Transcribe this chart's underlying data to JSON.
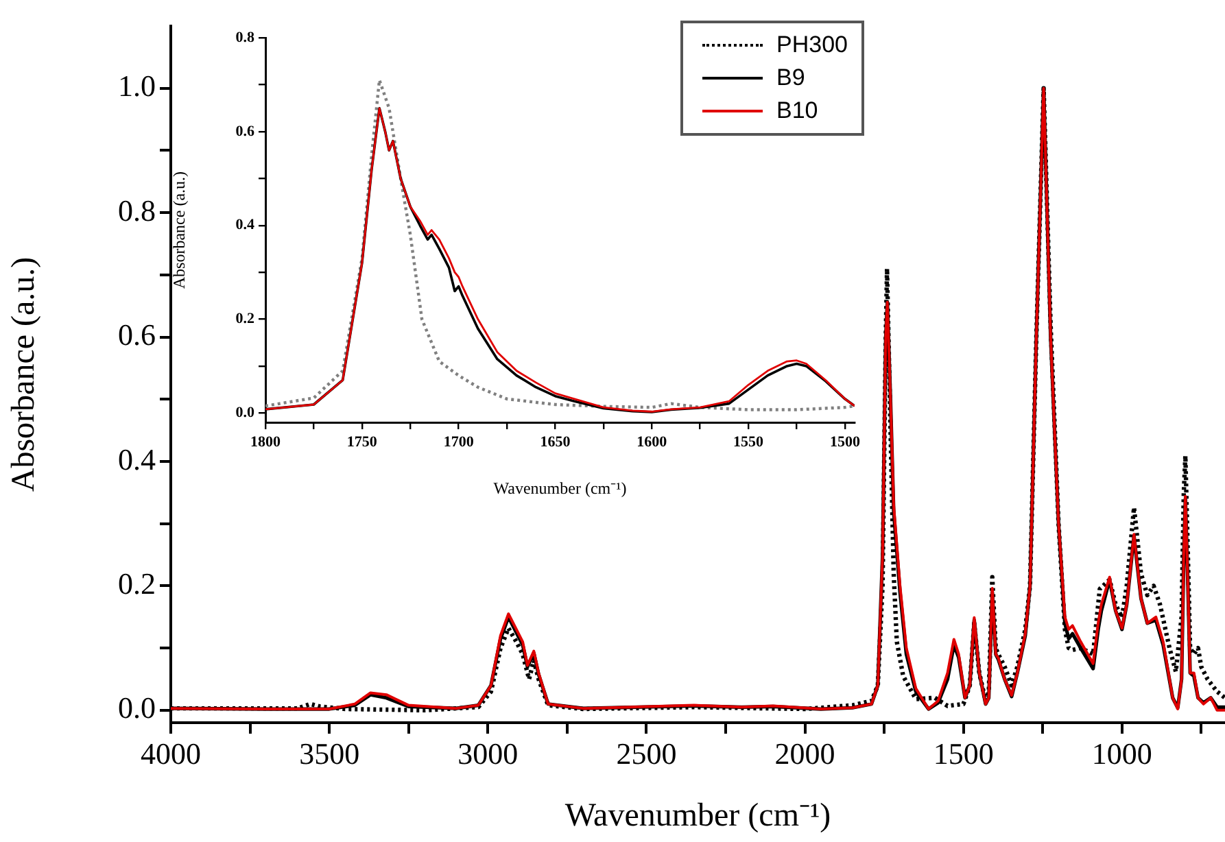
{
  "chart_data": [
    {
      "type": "line",
      "xlabel": "Wavenumber (cm⁻¹)",
      "ylabel": "Absorbance (a.u.)",
      "xlim": [
        4000,
        675
      ],
      "ylim": [
        -0.02,
        1.1
      ],
      "xticks": [
        4000,
        {
          "value": 3750,
          "label": null
        },
        3500,
        {
          "value": 3250,
          "label": null
        },
        3000,
        {
          "value": 2750,
          "label": null
        },
        2500,
        {
          "value": 2250,
          "label": null
        },
        2000,
        {
          "value": 1750,
          "label": null
        },
        1500,
        {
          "value": 1250,
          "label": null
        },
        1000,
        {
          "value": 750,
          "label": null
        }
      ],
      "yticks": [
        {
          "value": 0,
          "label": "0.0"
        },
        {
          "value": 0.1,
          "label": null
        },
        0.2,
        {
          "value": 0.3,
          "label": null
        },
        0.4,
        {
          "value": 0.5,
          "label": null
        },
        0.6,
        {
          "value": 0.7,
          "label": null
        },
        0.8,
        {
          "value": 0.9,
          "label": null
        },
        {
          "value": 1,
          "label": "1.0"
        }
      ],
      "legend": "top right",
      "series": [
        {
          "name": "PH300",
          "color": "#000000",
          "line_style": "dotted",
          "x": [
            4000,
            3600,
            3560,
            3530,
            3450,
            3200,
            3030,
            2990,
            2960,
            2935,
            2910,
            2890,
            2870,
            2855,
            2840,
            2810,
            2700,
            2350,
            2000,
            1850,
            1790,
            1770,
            1755,
            1745,
            1741,
            1730,
            1720,
            1710,
            1690,
            1650,
            1590,
            1550,
            1500,
            1480,
            1466,
            1450,
            1430,
            1420,
            1409,
            1398,
            1390,
            1370,
            1348,
            1330,
            1305,
            1290,
            1270,
            1247,
            1225,
            1200,
            1180,
            1168,
            1156,
            1130,
            1091,
            1070,
            1039,
            1020,
            1000,
            985,
            962,
            940,
            920,
            900,
            880,
            850,
            830,
            812,
            805,
            800,
            792,
            785,
            773,
            760,
            750,
            730,
            700,
            675
          ],
          "values": [
            0.003,
            0.003,
            0.01,
            0.006,
            0.002,
            0.0,
            0.005,
            0.03,
            0.1,
            0.132,
            0.11,
            0.09,
            0.05,
            0.08,
            0.05,
            0.008,
            0.002,
            0.005,
            0.002,
            0.008,
            0.015,
            0.04,
            0.2,
            0.6,
            0.71,
            0.45,
            0.22,
            0.11,
            0.055,
            0.018,
            0.02,
            0.007,
            0.01,
            0.04,
            0.14,
            0.06,
            0.015,
            0.03,
            0.214,
            0.1,
            0.09,
            0.07,
            0.04,
            0.07,
            0.13,
            0.2,
            0.6,
            1.0,
            0.62,
            0.3,
            0.13,
            0.1,
            0.097,
            0.1,
            0.09,
            0.195,
            0.21,
            0.17,
            0.149,
            0.2,
            0.326,
            0.22,
            0.185,
            0.2,
            0.17,
            0.1,
            0.062,
            0.15,
            0.35,
            0.409,
            0.25,
            0.1,
            0.09,
            0.1,
            0.07,
            0.05,
            0.03,
            0.02
          ]
        },
        {
          "name": "B9",
          "color": "#000000",
          "line_style": "solid",
          "x": [
            4000,
            3700,
            3500,
            3420,
            3370,
            3320,
            3250,
            3100,
            3030,
            2990,
            2960,
            2935,
            2910,
            2890,
            2875,
            2855,
            2840,
            2810,
            2700,
            2350,
            2200,
            2100,
            1950,
            1850,
            1790,
            1770,
            1755,
            1745,
            1740,
            1730,
            1720,
            1700,
            1680,
            1650,
            1610,
            1580,
            1550,
            1530,
            1515,
            1495,
            1480,
            1466,
            1450,
            1430,
            1420,
            1409,
            1398,
            1390,
            1370,
            1348,
            1330,
            1305,
            1290,
            1270,
            1247,
            1225,
            1200,
            1180,
            1168,
            1156,
            1130,
            1091,
            1075,
            1065,
            1039,
            1020,
            1000,
            985,
            962,
            940,
            920,
            893,
            870,
            840,
            824,
            812,
            805,
            800,
            792,
            785,
            773,
            760,
            743,
            720,
            700,
            675
          ],
          "values": [
            0.003,
            0.002,
            0.002,
            0.008,
            0.025,
            0.02,
            0.006,
            0.003,
            0.008,
            0.04,
            0.115,
            0.15,
            0.125,
            0.105,
            0.07,
            0.092,
            0.058,
            0.01,
            0.003,
            0.007,
            0.005,
            0.006,
            0.002,
            0.004,
            0.01,
            0.04,
            0.25,
            0.6,
            0.656,
            0.5,
            0.32,
            0.19,
            0.09,
            0.03,
            0.002,
            0.012,
            0.05,
            0.105,
            0.085,
            0.02,
            0.04,
            0.145,
            0.06,
            0.01,
            0.02,
            0.19,
            0.09,
            0.082,
            0.05,
            0.022,
            0.06,
            0.12,
            0.2,
            0.6,
            1.0,
            0.6,
            0.3,
            0.14,
            0.115,
            0.123,
            0.1,
            0.067,
            0.13,
            0.16,
            0.21,
            0.16,
            0.13,
            0.17,
            0.28,
            0.18,
            0.14,
            0.145,
            0.105,
            0.02,
            0.004,
            0.05,
            0.25,
            0.34,
            0.2,
            0.06,
            0.055,
            0.02,
            0.012,
            0.02,
            0.005,
            0.005
          ]
        },
        {
          "name": "B10",
          "color": "#e00000",
          "line_style": "solid",
          "x": [
            4000,
            3700,
            3500,
            3420,
            3370,
            3320,
            3250,
            3100,
            3030,
            2990,
            2960,
            2935,
            2910,
            2890,
            2875,
            2855,
            2840,
            2810,
            2700,
            2350,
            2200,
            2100,
            1950,
            1850,
            1790,
            1770,
            1755,
            1745,
            1740,
            1730,
            1720,
            1700,
            1680,
            1650,
            1610,
            1580,
            1550,
            1530,
            1515,
            1495,
            1480,
            1466,
            1450,
            1430,
            1420,
            1409,
            1398,
            1390,
            1370,
            1348,
            1330,
            1305,
            1290,
            1270,
            1247,
            1225,
            1200,
            1180,
            1168,
            1156,
            1130,
            1091,
            1075,
            1065,
            1039,
            1020,
            1000,
            985,
            962,
            940,
            920,
            893,
            870,
            840,
            824,
            812,
            805,
            800,
            792,
            785,
            773,
            760,
            743,
            720,
            700,
            675
          ],
          "values": [
            0.003,
            0.002,
            0.002,
            0.01,
            0.028,
            0.025,
            0.008,
            0.003,
            0.008,
            0.04,
            0.12,
            0.155,
            0.13,
            0.11,
            0.072,
            0.095,
            0.06,
            0.01,
            0.003,
            0.008,
            0.005,
            0.007,
            0.002,
            0.004,
            0.01,
            0.04,
            0.25,
            0.6,
            0.656,
            0.5,
            0.33,
            0.2,
            0.1,
            0.035,
            0.002,
            0.015,
            0.06,
            0.114,
            0.09,
            0.02,
            0.04,
            0.149,
            0.06,
            0.01,
            0.02,
            0.196,
            0.09,
            0.084,
            0.05,
            0.024,
            0.06,
            0.123,
            0.2,
            0.6,
            1.0,
            0.6,
            0.3,
            0.15,
            0.13,
            0.136,
            0.11,
            0.075,
            0.14,
            0.17,
            0.214,
            0.16,
            0.132,
            0.17,
            0.283,
            0.18,
            0.14,
            0.15,
            0.11,
            0.02,
            0.002,
            0.05,
            0.25,
            0.344,
            0.2,
            0.06,
            0.06,
            0.02,
            0.01,
            0.02,
            0.0,
            0.0
          ]
        }
      ]
    },
    {
      "type": "line",
      "xlabel": "Wavenumber (cm⁻¹)",
      "ylabel": "Absorbance (a.u.)",
      "xlim": [
        1800,
        1495
      ],
      "ylim": [
        -0.02,
        0.8
      ],
      "xticks": [
        1800,
        {
          "value": 1775,
          "label": null
        },
        1750,
        {
          "value": 1725,
          "label": null
        },
        1700,
        {
          "value": 1675,
          "label": null
        },
        1650,
        {
          "value": 1625,
          "label": null
        },
        1600,
        {
          "value": 1575,
          "label": null
        },
        1550,
        {
          "value": 1525,
          "label": null
        },
        1500
      ],
      "yticks": [
        {
          "value": 0,
          "label": "0.0"
        },
        {
          "value": 0.1,
          "label": null
        },
        0.2,
        {
          "value": 0.3,
          "label": null
        },
        0.4,
        {
          "value": 0.5,
          "label": null
        },
        0.6,
        {
          "value": 0.7,
          "label": null
        },
        0.8
      ],
      "series": [
        {
          "color": "#808080",
          "line_style": "dotted",
          "x": [
            1800,
            1775,
            1760,
            1750,
            1745,
            1741,
            1736,
            1730,
            1725,
            1719,
            1710,
            1700,
            1690,
            1675,
            1650,
            1625,
            1600,
            1590,
            1575,
            1550,
            1525,
            1500,
            1495
          ],
          "values": [
            0.015,
            0.032,
            0.09,
            0.33,
            0.55,
            0.71,
            0.65,
            0.5,
            0.38,
            0.2,
            0.11,
            0.08,
            0.055,
            0.03,
            0.018,
            0.014,
            0.012,
            0.02,
            0.012,
            0.007,
            0.007,
            0.012,
            0.015
          ]
        },
        {
          "color": "#000000",
          "line_style": "solid",
          "x": [
            1800,
            1775,
            1760,
            1750,
            1745,
            1741,
            1738,
            1736,
            1734,
            1730,
            1725,
            1720,
            1716,
            1714,
            1710,
            1705,
            1702,
            1700,
            1698,
            1690,
            1680,
            1670,
            1660,
            1650,
            1640,
            1625,
            1610,
            1600,
            1590,
            1575,
            1560,
            1550,
            1540,
            1530,
            1525,
            1520,
            1510,
            1500,
            1495
          ],
          "values": [
            0.008,
            0.018,
            0.07,
            0.32,
            0.52,
            0.65,
            0.6,
            0.56,
            0.58,
            0.5,
            0.44,
            0.4,
            0.37,
            0.38,
            0.35,
            0.31,
            0.26,
            0.27,
            0.25,
            0.18,
            0.115,
            0.08,
            0.055,
            0.036,
            0.025,
            0.01,
            0.004,
            0.002,
            0.007,
            0.011,
            0.02,
            0.05,
            0.08,
            0.1,
            0.105,
            0.1,
            0.068,
            0.03,
            0.015
          ]
        },
        {
          "color": "#e00000",
          "line_style": "solid",
          "x": [
            1800,
            1775,
            1760,
            1750,
            1745,
            1741,
            1738,
            1736,
            1734,
            1730,
            1725,
            1720,
            1716,
            1714,
            1710,
            1705,
            1702,
            1700,
            1698,
            1690,
            1680,
            1670,
            1660,
            1650,
            1640,
            1625,
            1610,
            1600,
            1590,
            1575,
            1560,
            1550,
            1540,
            1530,
            1525,
            1520,
            1510,
            1500,
            1495
          ],
          "values": [
            0.008,
            0.018,
            0.07,
            0.32,
            0.52,
            0.65,
            0.6,
            0.56,
            0.58,
            0.5,
            0.44,
            0.41,
            0.38,
            0.39,
            0.37,
            0.33,
            0.3,
            0.29,
            0.27,
            0.2,
            0.13,
            0.09,
            0.065,
            0.042,
            0.03,
            0.012,
            0.005,
            0.003,
            0.008,
            0.012,
            0.025,
            0.06,
            0.09,
            0.11,
            0.112,
            0.105,
            0.07,
            0.03,
            0.015
          ]
        }
      ]
    }
  ]
}
